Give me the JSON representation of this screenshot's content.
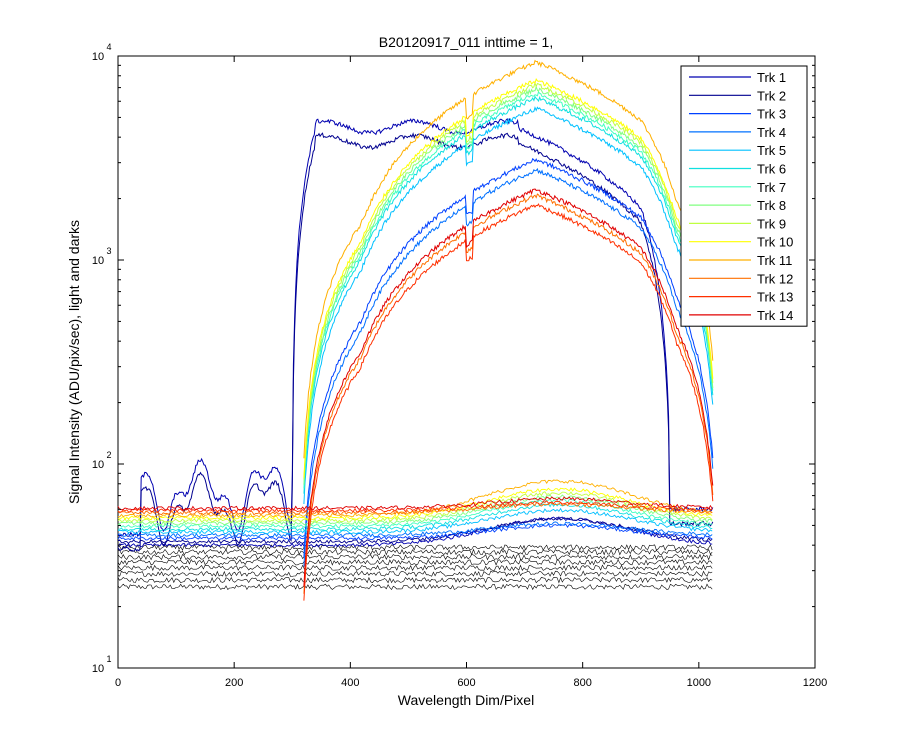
{
  "chart_data": {
    "type": "line",
    "title": "B20120917_011 inttime = 1,",
    "xlabel": "Wavelength Dim/Pixel",
    "ylabel": "Signal Intensity (ADU/pix/sec), light and darks",
    "xlim": [
      0,
      1200
    ],
    "ylim": [
      10,
      10000
    ],
    "yscale": "log",
    "grid": false,
    "legend_position": "top-right",
    "x_ticks": [
      0,
      200,
      400,
      600,
      800,
      1000,
      1200
    ],
    "y_ticks": [
      {
        "value": 10,
        "base": "10",
        "exp": "1"
      },
      {
        "value": 100,
        "base": "10",
        "exp": "2"
      },
      {
        "value": 1000,
        "base": "10",
        "exp": "3"
      },
      {
        "value": 10000,
        "base": "10",
        "exp": "4"
      }
    ],
    "series": [
      {
        "name": "Trk 1",
        "color": "#0000b0",
        "class": "blue",
        "scale": 1.0
      },
      {
        "name": "Trk 2",
        "color": "#00008f",
        "class": "blue",
        "scale": 0.85
      },
      {
        "name": "Trk 3",
        "color": "#0040ff",
        "class": "mid",
        "scale": 0.45
      },
      {
        "name": "Trk 4",
        "color": "#0070ff",
        "class": "mid",
        "scale": 0.4
      },
      {
        "name": "Trk 5",
        "color": "#00c0ff",
        "class": "mid",
        "scale": 0.8
      },
      {
        "name": "Trk 6",
        "color": "#10e0e0",
        "class": "mid",
        "scale": 0.9
      },
      {
        "name": "Trk 7",
        "color": "#40ffc0",
        "class": "mid",
        "scale": 0.95
      },
      {
        "name": "Trk 8",
        "color": "#80ff80",
        "class": "mid",
        "scale": 1.0
      },
      {
        "name": "Trk 9",
        "color": "#c0ff40",
        "class": "mid",
        "scale": 1.05
      },
      {
        "name": "Trk 10",
        "color": "#ffff00",
        "class": "mid",
        "scale": 1.1
      },
      {
        "name": "Trk 11",
        "color": "#ffb000",
        "class": "mid",
        "scale": 1.35
      },
      {
        "name": "Trk 12",
        "color": "#ff7000",
        "class": "mid",
        "scale": 0.3
      },
      {
        "name": "Trk 13",
        "color": "#ff3000",
        "class": "mid",
        "scale": 0.27
      },
      {
        "name": "Trk 14",
        "color": "#e00000",
        "class": "mid",
        "scale": 0.32
      }
    ]
  }
}
